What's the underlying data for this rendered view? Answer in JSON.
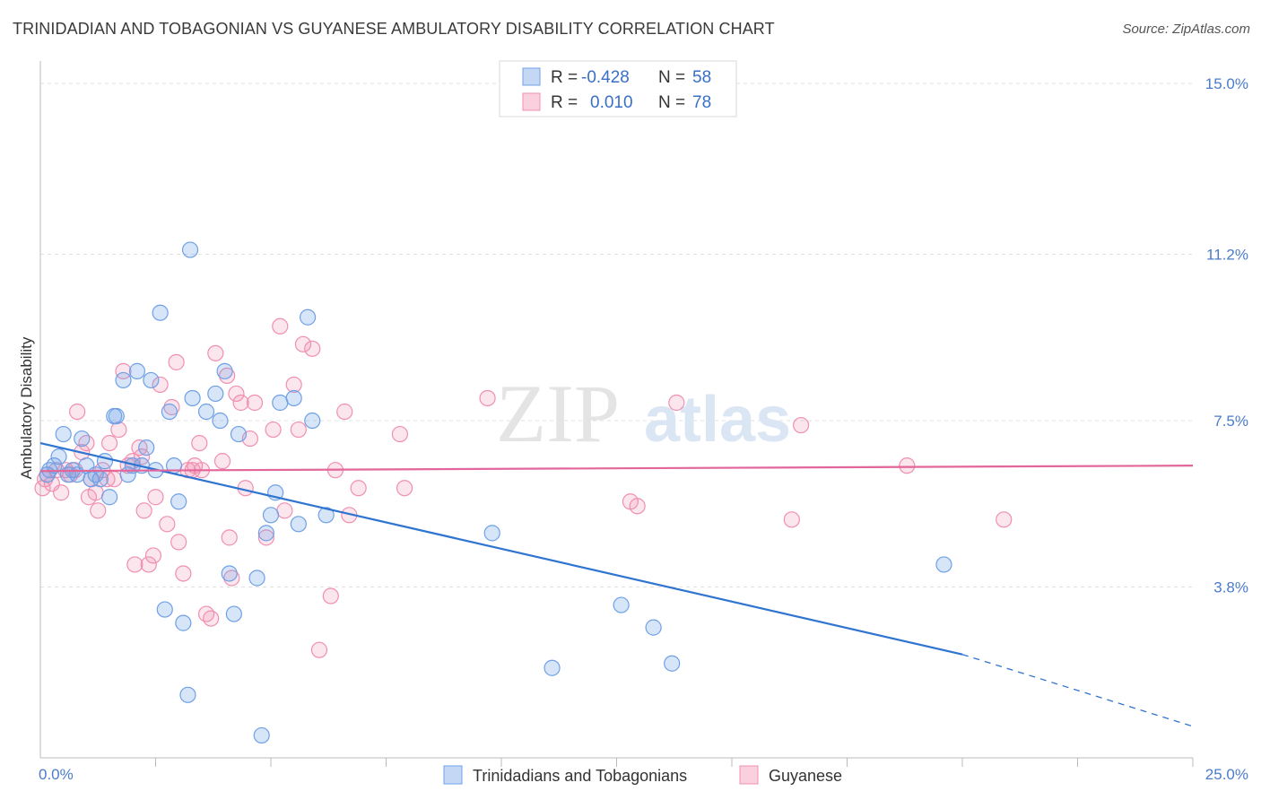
{
  "header": {
    "title": "TRINIDADIAN AND TOBAGONIAN VS GUYANESE AMBULATORY DISABILITY CORRELATION CHART",
    "source": "Source: ZipAtlas.com"
  },
  "watermark": {
    "zip": "ZIP",
    "atlas": "atlas"
  },
  "legend": {
    "rows": [
      {
        "r_label": "R =",
        "r_value": "-0.428",
        "n_label": "N =",
        "n_value": "58",
        "color": "#6fa0e6"
      },
      {
        "r_label": "R =",
        "r_value": "0.010",
        "n_label": "N =",
        "n_value": "78",
        "color": "#f08fb0"
      }
    ]
  },
  "bottom_legend": [
    {
      "label": "Trinidadians and Tobagonians",
      "color": "#6fa0e6"
    },
    {
      "label": "Guyanese",
      "color": "#f08fb0"
    }
  ],
  "chart_data": {
    "type": "scatter",
    "title": "TRINIDADIAN AND TOBAGONIAN VS GUYANESE AMBULATORY DISABILITY CORRELATION CHART",
    "xlabel": "",
    "ylabel": "Ambulatory Disability",
    "xlim": [
      0,
      25
    ],
    "ylim": [
      0,
      15.5
    ],
    "x_tick_labels": [
      "0.0%",
      "25.0%"
    ],
    "y_ticks": [
      {
        "value": 3.8,
        "label": "3.8%"
      },
      {
        "value": 7.5,
        "label": "7.5%"
      },
      {
        "value": 11.2,
        "label": "11.2%"
      },
      {
        "value": 15.0,
        "label": "15.0%"
      }
    ],
    "grid": "horizontal-dashed",
    "legend_position": "top-center",
    "series": [
      {
        "name": "Trinidadians and Tobagonians",
        "color": "#6fa0e6",
        "trend": {
          "x": [
            0,
            20
          ],
          "y": [
            7.0,
            2.3
          ],
          "dashed_to": [
            25,
            0.7
          ]
        },
        "points": [
          [
            0.2,
            6.4
          ],
          [
            0.3,
            6.5
          ],
          [
            0.4,
            6.7
          ],
          [
            0.5,
            7.2
          ],
          [
            0.6,
            6.3
          ],
          [
            0.7,
            6.4
          ],
          [
            0.8,
            6.3
          ],
          [
            0.9,
            7.1
          ],
          [
            1.0,
            6.5
          ],
          [
            1.1,
            6.2
          ],
          [
            1.2,
            6.3
          ],
          [
            1.3,
            6.2
          ],
          [
            1.4,
            6.6
          ],
          [
            1.5,
            5.8
          ],
          [
            1.6,
            7.6
          ],
          [
            1.65,
            7.6
          ],
          [
            1.8,
            8.4
          ],
          [
            1.9,
            6.3
          ],
          [
            2.0,
            6.5
          ],
          [
            2.1,
            8.6
          ],
          [
            2.2,
            6.5
          ],
          [
            2.3,
            6.9
          ],
          [
            2.4,
            8.4
          ],
          [
            2.5,
            6.4
          ],
          [
            2.6,
            9.9
          ],
          [
            2.7,
            3.3
          ],
          [
            2.8,
            7.7
          ],
          [
            2.9,
            6.5
          ],
          [
            3.0,
            5.7
          ],
          [
            3.1,
            3.0
          ],
          [
            3.2,
            1.4
          ],
          [
            3.25,
            11.3
          ],
          [
            3.3,
            8.0
          ],
          [
            3.6,
            7.7
          ],
          [
            3.8,
            8.1
          ],
          [
            3.9,
            7.5
          ],
          [
            4.0,
            8.6
          ],
          [
            4.1,
            4.1
          ],
          [
            4.2,
            3.2
          ],
          [
            4.3,
            7.2
          ],
          [
            4.7,
            4.0
          ],
          [
            4.8,
            0.5
          ],
          [
            4.9,
            5.0
          ],
          [
            5.0,
            5.4
          ],
          [
            5.1,
            5.9
          ],
          [
            5.2,
            7.9
          ],
          [
            5.5,
            8.0
          ],
          [
            5.6,
            5.2
          ],
          [
            5.8,
            9.8
          ],
          [
            5.9,
            7.5
          ],
          [
            6.2,
            5.4
          ],
          [
            9.8,
            5.0
          ],
          [
            11.1,
            2.0
          ],
          [
            12.6,
            3.4
          ],
          [
            13.3,
            2.9
          ],
          [
            13.7,
            2.1
          ],
          [
            19.6,
            4.3
          ],
          [
            0.15,
            6.3
          ]
        ]
      },
      {
        "name": "Guyanese",
        "color": "#f08fb0",
        "trend": {
          "x": [
            0,
            25
          ],
          "y": [
            6.38,
            6.5
          ]
        },
        "points": [
          [
            0.05,
            6.0
          ],
          [
            0.15,
            6.3
          ],
          [
            0.25,
            6.1
          ],
          [
            0.35,
            6.4
          ],
          [
            0.45,
            5.9
          ],
          [
            0.55,
            6.4
          ],
          [
            0.65,
            6.3
          ],
          [
            0.75,
            6.4
          ],
          [
            0.8,
            7.7
          ],
          [
            0.9,
            6.8
          ],
          [
            1.0,
            7.0
          ],
          [
            1.05,
            5.8
          ],
          [
            1.1,
            6.2
          ],
          [
            1.2,
            5.9
          ],
          [
            1.25,
            5.5
          ],
          [
            1.35,
            6.4
          ],
          [
            1.45,
            6.2
          ],
          [
            1.5,
            7.0
          ],
          [
            1.6,
            6.2
          ],
          [
            1.7,
            7.3
          ],
          [
            1.8,
            8.6
          ],
          [
            1.9,
            6.5
          ],
          [
            2.0,
            6.6
          ],
          [
            2.05,
            4.3
          ],
          [
            2.15,
            6.9
          ],
          [
            2.2,
            6.7
          ],
          [
            2.25,
            5.5
          ],
          [
            2.35,
            4.3
          ],
          [
            2.45,
            4.5
          ],
          [
            2.5,
            5.8
          ],
          [
            2.6,
            8.3
          ],
          [
            2.75,
            5.2
          ],
          [
            2.85,
            7.8
          ],
          [
            2.95,
            8.8
          ],
          [
            3.0,
            4.8
          ],
          [
            3.1,
            4.1
          ],
          [
            3.2,
            6.4
          ],
          [
            3.35,
            6.5
          ],
          [
            3.45,
            7.0
          ],
          [
            3.5,
            6.4
          ],
          [
            3.6,
            3.2
          ],
          [
            3.7,
            3.1
          ],
          [
            3.8,
            9.0
          ],
          [
            3.95,
            6.6
          ],
          [
            4.05,
            8.5
          ],
          [
            4.1,
            4.9
          ],
          [
            4.15,
            4.0
          ],
          [
            4.25,
            8.1
          ],
          [
            4.35,
            7.9
          ],
          [
            4.45,
            6.0
          ],
          [
            4.55,
            7.1
          ],
          [
            4.65,
            7.9
          ],
          [
            4.9,
            4.9
          ],
          [
            5.05,
            7.3
          ],
          [
            5.2,
            9.6
          ],
          [
            5.3,
            5.5
          ],
          [
            5.5,
            8.3
          ],
          [
            5.6,
            7.3
          ],
          [
            5.7,
            9.2
          ],
          [
            5.9,
            9.1
          ],
          [
            6.05,
            2.4
          ],
          [
            6.3,
            3.6
          ],
          [
            6.4,
            6.4
          ],
          [
            6.6,
            7.7
          ],
          [
            6.7,
            5.4
          ],
          [
            6.9,
            6.0
          ],
          [
            7.8,
            7.2
          ],
          [
            7.9,
            6.0
          ],
          [
            9.7,
            8.0
          ],
          [
            12.8,
            5.7
          ],
          [
            12.95,
            5.6
          ],
          [
            13.8,
            7.9
          ],
          [
            16.3,
            5.3
          ],
          [
            16.5,
            7.4
          ],
          [
            18.8,
            6.5
          ],
          [
            20.9,
            5.3
          ],
          [
            0.1,
            6.2
          ],
          [
            3.3,
            6.4
          ]
        ]
      }
    ]
  }
}
